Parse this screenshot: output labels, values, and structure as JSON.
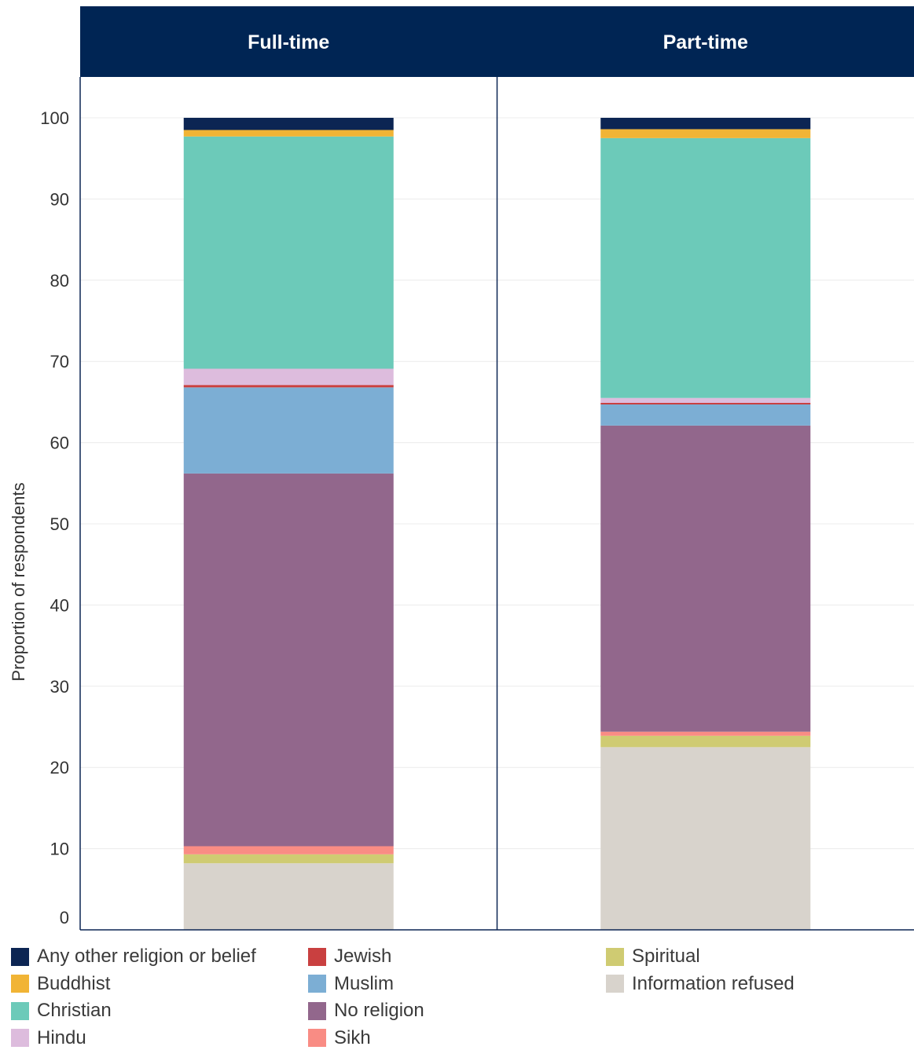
{
  "chart_data": {
    "type": "bar",
    "stacked": true,
    "panels": [
      "Full-time",
      "Part-time"
    ],
    "ylabel": "Proportion of respondents",
    "ylim": [
      0,
      100
    ],
    "yticks": [
      "0",
      "10",
      "20",
      "30",
      "40",
      "50",
      "60",
      "70",
      "80",
      "90",
      "100"
    ],
    "grid": true,
    "legend_position": "bottom",
    "series": [
      {
        "name": "Information refused",
        "color": "#d8d3cc",
        "values": [
          8.2,
          22.5
        ]
      },
      {
        "name": "Spiritual",
        "color": "#cfcb72",
        "values": [
          1.1,
          1.4
        ]
      },
      {
        "name": "Sikh",
        "color": "#f98c84",
        "values": [
          1.0,
          0.5
        ]
      },
      {
        "name": "No religion",
        "color": "#92678c",
        "values": [
          45.9,
          37.7
        ]
      },
      {
        "name": "Muslim",
        "color": "#7caed4",
        "values": [
          10.6,
          2.6
        ]
      },
      {
        "name": "Jewish",
        "color": "#c94040",
        "values": [
          0.3,
          0.2
        ]
      },
      {
        "name": "Hindu",
        "color": "#ddbcdd",
        "values": [
          2.0,
          0.6
        ]
      },
      {
        "name": "Christian",
        "color": "#6ccab9",
        "values": [
          28.6,
          32.0
        ]
      },
      {
        "name": "Buddhist",
        "color": "#f1b435",
        "values": [
          0.8,
          1.1
        ]
      },
      {
        "name": "Any other religion or belief",
        "color": "#0c2553",
        "values": [
          1.5,
          1.4
        ]
      }
    ],
    "legend_order": [
      "Any other religion or belief",
      "Buddhist",
      "Christian",
      "Hindu",
      "Jewish",
      "Muslim",
      "No religion",
      "Sikh",
      "Spiritual",
      "Information refused"
    ]
  }
}
